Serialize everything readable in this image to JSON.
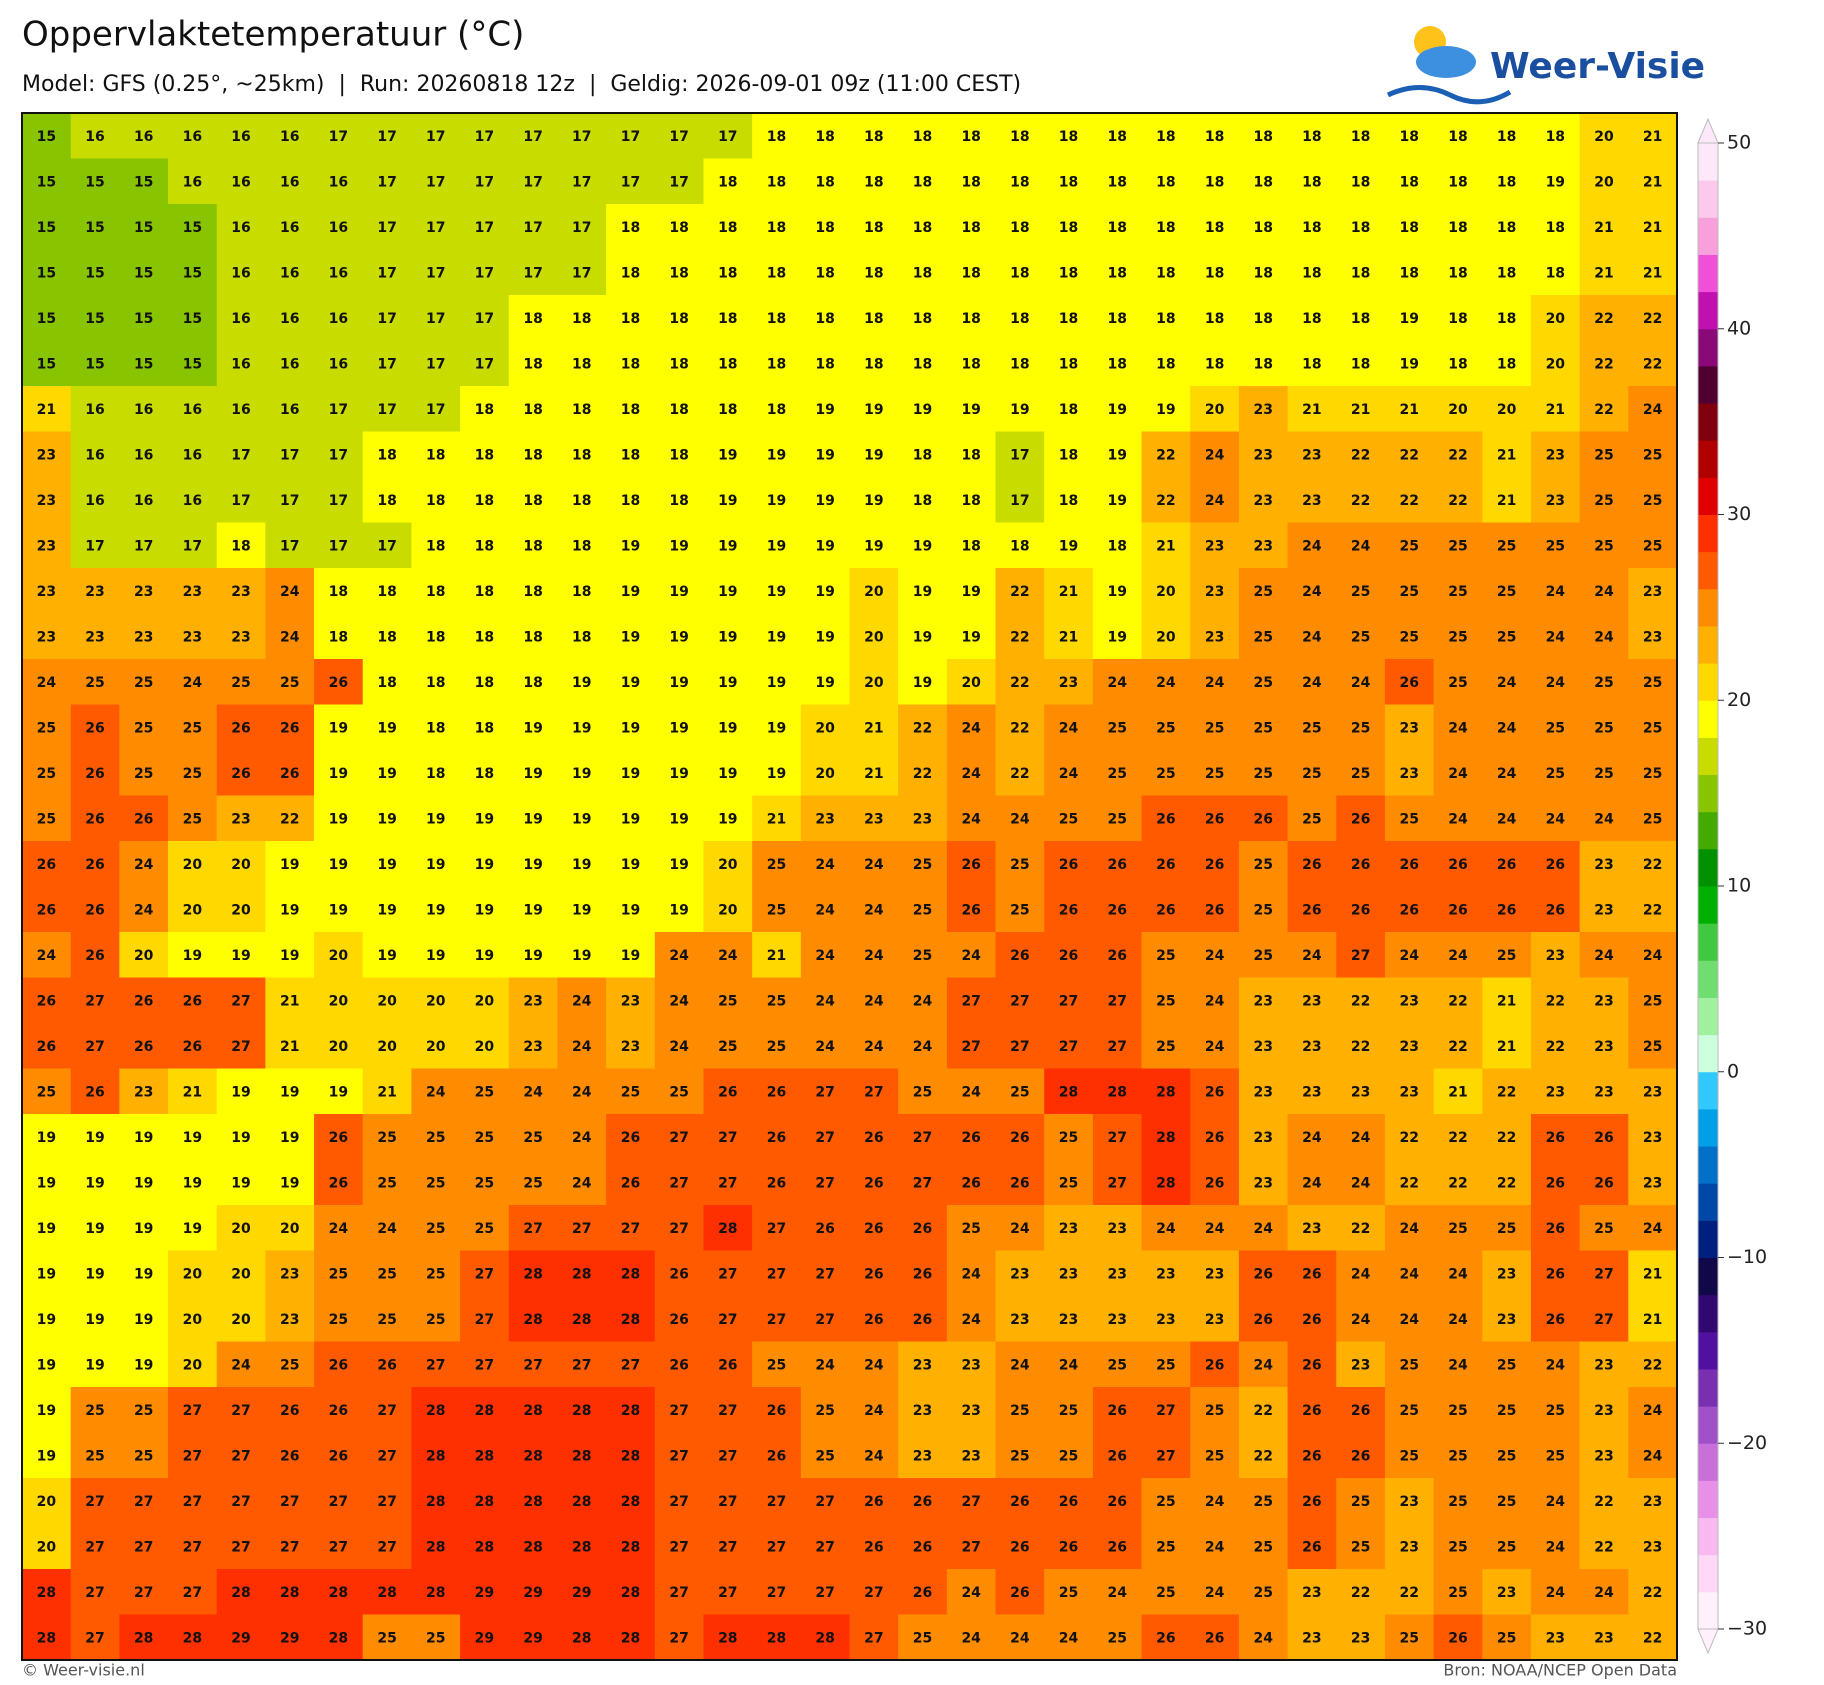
{
  "chart_data": {
    "type": "heatmap",
    "title": "Oppervlaktetemperatuur (°C)",
    "subtitle": "Model: GFS (0.25°, ~25km)  |  Run: 20260818 12z  |  Geldig: 2026-09-01 09z (11:00 CEST)",
    "brand": "Weer-Visie",
    "credit": "© Weer-visie.nl",
    "source": "Bron: NOAA/NCEP Open Data",
    "values": [
      [
        15,
        16,
        16,
        16,
        16,
        16,
        17,
        17,
        17,
        17,
        17,
        17,
        17,
        17,
        17,
        18,
        18,
        18,
        18,
        18,
        18,
        18,
        18,
        18,
        18,
        18,
        18,
        18,
        18,
        18,
        18,
        18,
        20,
        21
      ],
      [
        15,
        15,
        15,
        16,
        16,
        16,
        16,
        17,
        17,
        17,
        17,
        17,
        17,
        17,
        18,
        18,
        18,
        18,
        18,
        18,
        18,
        18,
        18,
        18,
        18,
        18,
        18,
        18,
        18,
        18,
        18,
        19,
        20,
        21
      ],
      [
        15,
        15,
        15,
        15,
        16,
        16,
        16,
        17,
        17,
        17,
        17,
        17,
        18,
        18,
        18,
        18,
        18,
        18,
        18,
        18,
        18,
        18,
        18,
        18,
        18,
        18,
        18,
        18,
        18,
        18,
        18,
        18,
        21,
        21
      ],
      [
        15,
        15,
        15,
        15,
        16,
        16,
        16,
        17,
        17,
        17,
        17,
        17,
        18,
        18,
        18,
        18,
        18,
        18,
        18,
        18,
        18,
        18,
        18,
        18,
        18,
        18,
        18,
        18,
        18,
        18,
        18,
        18,
        21,
        21
      ],
      [
        15,
        15,
        15,
        15,
        16,
        16,
        16,
        17,
        17,
        17,
        18,
        18,
        18,
        18,
        18,
        18,
        18,
        18,
        18,
        18,
        18,
        18,
        18,
        18,
        18,
        18,
        18,
        18,
        19,
        18,
        18,
        20,
        22,
        22
      ],
      [
        15,
        15,
        15,
        15,
        16,
        16,
        16,
        17,
        17,
        17,
        18,
        18,
        18,
        18,
        18,
        18,
        18,
        18,
        18,
        18,
        18,
        18,
        18,
        18,
        18,
        18,
        18,
        18,
        19,
        18,
        18,
        20,
        22,
        22
      ],
      [
        21,
        16,
        16,
        16,
        16,
        16,
        17,
        17,
        17,
        18,
        18,
        18,
        18,
        18,
        18,
        18,
        19,
        19,
        19,
        19,
        19,
        18,
        19,
        19,
        20,
        23,
        21,
        21,
        21,
        20,
        20,
        21,
        22,
        24
      ],
      [
        23,
        16,
        16,
        16,
        17,
        17,
        17,
        18,
        18,
        18,
        18,
        18,
        18,
        18,
        19,
        19,
        19,
        19,
        18,
        18,
        17,
        18,
        19,
        22,
        24,
        23,
        23,
        22,
        22,
        22,
        21,
        23,
        25,
        25
      ],
      [
        23,
        16,
        16,
        16,
        17,
        17,
        17,
        18,
        18,
        18,
        18,
        18,
        18,
        18,
        19,
        19,
        19,
        19,
        18,
        18,
        17,
        18,
        19,
        22,
        24,
        23,
        23,
        22,
        22,
        22,
        21,
        23,
        25,
        25
      ],
      [
        23,
        17,
        17,
        17,
        18,
        17,
        17,
        17,
        18,
        18,
        18,
        18,
        19,
        19,
        19,
        19,
        19,
        19,
        19,
        18,
        18,
        19,
        18,
        21,
        23,
        23,
        24,
        24,
        25,
        25,
        25,
        25,
        25,
        25
      ],
      [
        23,
        23,
        23,
        23,
        23,
        24,
        18,
        18,
        18,
        18,
        18,
        18,
        19,
        19,
        19,
        19,
        19,
        20,
        19,
        19,
        22,
        21,
        19,
        20,
        23,
        25,
        24,
        25,
        25,
        25,
        25,
        24,
        24,
        23
      ],
      [
        23,
        23,
        23,
        23,
        23,
        24,
        18,
        18,
        18,
        18,
        18,
        18,
        19,
        19,
        19,
        19,
        19,
        20,
        19,
        19,
        22,
        21,
        19,
        20,
        23,
        25,
        24,
        25,
        25,
        25,
        25,
        24,
        24,
        23
      ],
      [
        24,
        25,
        25,
        24,
        25,
        25,
        26,
        18,
        18,
        18,
        18,
        19,
        19,
        19,
        19,
        19,
        19,
        20,
        19,
        20,
        22,
        23,
        24,
        24,
        24,
        25,
        24,
        24,
        26,
        25,
        24,
        24,
        25,
        25
      ],
      [
        25,
        26,
        25,
        25,
        26,
        26,
        19,
        19,
        18,
        18,
        19,
        19,
        19,
        19,
        19,
        19,
        20,
        21,
        22,
        24,
        22,
        24,
        25,
        25,
        25,
        25,
        25,
        25,
        23,
        24,
        24,
        25,
        25,
        25
      ],
      [
        25,
        26,
        25,
        25,
        26,
        26,
        19,
        19,
        18,
        18,
        19,
        19,
        19,
        19,
        19,
        19,
        20,
        21,
        22,
        24,
        22,
        24,
        25,
        25,
        25,
        25,
        25,
        25,
        23,
        24,
        24,
        25,
        25,
        25
      ],
      [
        25,
        26,
        26,
        25,
        23,
        22,
        19,
        19,
        19,
        19,
        19,
        19,
        19,
        19,
        19,
        21,
        23,
        23,
        23,
        24,
        24,
        25,
        25,
        26,
        26,
        26,
        25,
        26,
        25,
        24,
        24,
        24,
        24,
        25
      ],
      [
        26,
        26,
        24,
        20,
        20,
        19,
        19,
        19,
        19,
        19,
        19,
        19,
        19,
        19,
        20,
        25,
        24,
        24,
        25,
        26,
        25,
        26,
        26,
        26,
        26,
        25,
        26,
        26,
        26,
        26,
        26,
        26,
        23,
        22
      ],
      [
        26,
        26,
        24,
        20,
        20,
        19,
        19,
        19,
        19,
        19,
        19,
        19,
        19,
        19,
        20,
        25,
        24,
        24,
        25,
        26,
        25,
        26,
        26,
        26,
        26,
        25,
        26,
        26,
        26,
        26,
        26,
        26,
        23,
        22
      ],
      [
        24,
        26,
        20,
        19,
        19,
        19,
        20,
        19,
        19,
        19,
        19,
        19,
        19,
        24,
        24,
        21,
        24,
        24,
        25,
        24,
        26,
        26,
        26,
        25,
        24,
        25,
        24,
        27,
        24,
        24,
        25,
        23,
        24,
        24
      ],
      [
        26,
        27,
        26,
        26,
        27,
        21,
        20,
        20,
        20,
        20,
        23,
        24,
        23,
        24,
        25,
        25,
        24,
        24,
        24,
        27,
        27,
        27,
        27,
        25,
        24,
        23,
        23,
        22,
        23,
        22,
        21,
        22,
        23,
        25
      ],
      [
        26,
        27,
        26,
        26,
        27,
        21,
        20,
        20,
        20,
        20,
        23,
        24,
        23,
        24,
        25,
        25,
        24,
        24,
        24,
        27,
        27,
        27,
        27,
        25,
        24,
        23,
        23,
        22,
        23,
        22,
        21,
        22,
        23,
        25
      ],
      [
        25,
        26,
        23,
        21,
        19,
        19,
        19,
        21,
        24,
        25,
        24,
        24,
        25,
        25,
        26,
        26,
        27,
        27,
        25,
        24,
        25,
        28,
        28,
        28,
        26,
        23,
        23,
        23,
        23,
        21,
        22,
        23,
        23,
        23
      ],
      [
        19,
        19,
        19,
        19,
        19,
        19,
        26,
        25,
        25,
        25,
        25,
        24,
        26,
        27,
        27,
        26,
        27,
        26,
        27,
        26,
        26,
        25,
        27,
        28,
        26,
        23,
        24,
        24,
        22,
        22,
        22,
        26,
        26,
        23
      ],
      [
        19,
        19,
        19,
        19,
        19,
        19,
        26,
        25,
        25,
        25,
        25,
        24,
        26,
        27,
        27,
        26,
        27,
        26,
        27,
        26,
        26,
        25,
        27,
        28,
        26,
        23,
        24,
        24,
        22,
        22,
        22,
        26,
        26,
        23
      ],
      [
        19,
        19,
        19,
        19,
        20,
        20,
        24,
        24,
        25,
        25,
        27,
        27,
        27,
        27,
        28,
        27,
        26,
        26,
        26,
        25,
        24,
        23,
        23,
        24,
        24,
        24,
        23,
        22,
        24,
        25,
        25,
        26,
        25,
        24
      ],
      [
        19,
        19,
        19,
        20,
        20,
        23,
        25,
        25,
        25,
        27,
        28,
        28,
        28,
        26,
        27,
        27,
        27,
        26,
        26,
        24,
        23,
        23,
        23,
        23,
        23,
        26,
        26,
        24,
        24,
        24,
        23,
        26,
        27,
        21
      ],
      [
        19,
        19,
        19,
        20,
        20,
        23,
        25,
        25,
        25,
        27,
        28,
        28,
        28,
        26,
        27,
        27,
        27,
        26,
        26,
        24,
        23,
        23,
        23,
        23,
        23,
        26,
        26,
        24,
        24,
        24,
        23,
        26,
        27,
        21
      ],
      [
        19,
        19,
        19,
        20,
        24,
        25,
        26,
        26,
        27,
        27,
        27,
        27,
        27,
        26,
        26,
        25,
        24,
        24,
        23,
        23,
        24,
        24,
        25,
        25,
        26,
        24,
        26,
        23,
        25,
        24,
        25,
        24,
        23,
        22
      ],
      [
        19,
        25,
        25,
        27,
        27,
        26,
        26,
        27,
        28,
        28,
        28,
        28,
        28,
        27,
        27,
        26,
        25,
        24,
        23,
        23,
        25,
        25,
        26,
        27,
        25,
        22,
        26,
        26,
        25,
        25,
        25,
        25,
        23,
        24
      ],
      [
        19,
        25,
        25,
        27,
        27,
        26,
        26,
        27,
        28,
        28,
        28,
        28,
        28,
        27,
        27,
        26,
        25,
        24,
        23,
        23,
        25,
        25,
        26,
        27,
        25,
        22,
        26,
        26,
        25,
        25,
        25,
        25,
        23,
        24
      ],
      [
        20,
        27,
        27,
        27,
        27,
        27,
        27,
        27,
        28,
        28,
        28,
        28,
        28,
        27,
        27,
        27,
        27,
        26,
        26,
        27,
        26,
        26,
        26,
        25,
        24,
        25,
        26,
        25,
        23,
        25,
        25,
        24,
        22,
        23
      ],
      [
        20,
        27,
        27,
        27,
        27,
        27,
        27,
        27,
        28,
        28,
        28,
        28,
        28,
        27,
        27,
        27,
        27,
        26,
        26,
        27,
        26,
        26,
        26,
        25,
        24,
        25,
        26,
        25,
        23,
        25,
        25,
        24,
        22,
        23
      ],
      [
        28,
        27,
        27,
        27,
        28,
        28,
        28,
        28,
        28,
        29,
        29,
        29,
        28,
        27,
        27,
        27,
        27,
        27,
        26,
        24,
        26,
        25,
        24,
        25,
        24,
        25,
        23,
        22,
        22,
        25,
        23,
        24,
        24,
        22
      ],
      [
        28,
        27,
        28,
        28,
        29,
        29,
        28,
        25,
        25,
        29,
        29,
        28,
        28,
        27,
        28,
        28,
        28,
        27,
        25,
        24,
        24,
        24,
        25,
        26,
        26,
        24,
        23,
        23,
        25,
        26,
        25,
        23,
        23,
        22
      ]
    ],
    "colorbar": {
      "lim": [
        -30,
        50
      ],
      "ticks": [
        50,
        40,
        30,
        20,
        10,
        0,
        {
          "value": -10,
          "label": "−10"
        },
        {
          "value": -20,
          "label": "−20"
        },
        {
          "value": -30,
          "label": "−30"
        }
      ],
      "colors": [
        "#fff0fc",
        "#ffd8f8",
        "#f8b8f0",
        "#e890e8",
        "#c870d8",
        "#a050c8",
        "#7830b0",
        "#5010a0",
        "#300870",
        "#100848",
        "#002080",
        "#0048a8",
        "#0070c8",
        "#00a0e8",
        "#30c8ff",
        "#ccffdd",
        "#a0f0a0",
        "#70dd70",
        "#40c840",
        "#00b000",
        "#009000",
        "#44aa00",
        "#88c400",
        "#c8dc00",
        "#ffff00",
        "#ffd800",
        "#ffb000",
        "#ff8c00",
        "#ff5a00",
        "#ff3000",
        "#e00000",
        "#b00000",
        "#800010",
        "#500030",
        "#8a0878",
        "#c010b0",
        "#f050d8",
        "#f8a0dc",
        "#fcc8ec",
        "#fce8f8"
      ]
    }
  }
}
